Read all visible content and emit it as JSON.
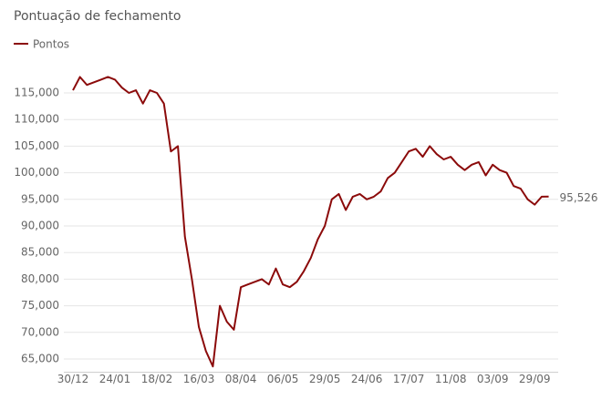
{
  "chart_data": {
    "type": "line",
    "title": "Pontuação de fechamento",
    "categories": [
      "30/12",
      null,
      null,
      null,
      null,
      null,
      "24/01",
      null,
      null,
      null,
      null,
      null,
      "18/02",
      null,
      null,
      null,
      null,
      null,
      "16/03",
      null,
      null,
      null,
      null,
      null,
      "08/04",
      null,
      null,
      null,
      null,
      null,
      "06/05",
      null,
      null,
      null,
      null,
      null,
      "29/05",
      null,
      null,
      null,
      null,
      null,
      "24/06",
      null,
      null,
      null,
      null,
      null,
      "17/07",
      null,
      null,
      null,
      null,
      null,
      "11/08",
      null,
      null,
      null,
      null,
      null,
      "03/09",
      null,
      null,
      null,
      null,
      null,
      "29/09",
      null,
      null
    ],
    "series": [
      {
        "name": "Pontos",
        "color": "#8b0a0a",
        "values": [
          115500,
          118000,
          116500,
          117000,
          117500,
          118000,
          117500,
          116000,
          115000,
          115500,
          113000,
          115500,
          115000,
          113000,
          104000,
          105000,
          88000,
          80000,
          71000,
          66500,
          63600,
          75000,
          72000,
          70500,
          78500,
          79000,
          79500,
          80000,
          79000,
          82000,
          79000,
          78500,
          79500,
          81500,
          84000,
          87500,
          90000,
          95000,
          96000,
          93000,
          95500,
          96000,
          95000,
          95500,
          96500,
          99000,
          100000,
          102000,
          104000,
          104500,
          103000,
          105000,
          103500,
          102500,
          103000,
          101500,
          100500,
          101500,
          102000,
          99500,
          101500,
          100500,
          100000,
          97500,
          97000,
          95000,
          94000,
          95500,
          95526
        ],
        "value_labels": [
          null,
          null,
          null,
          null,
          null,
          null,
          null,
          null,
          null,
          null,
          null,
          null,
          null,
          null,
          null,
          null,
          null,
          null,
          null,
          null,
          null,
          null,
          null,
          null,
          null,
          null,
          null,
          null,
          null,
          null,
          null,
          null,
          null,
          null,
          null,
          null,
          null,
          null,
          null,
          null,
          null,
          null,
          null,
          null,
          null,
          null,
          null,
          null,
          null,
          null,
          null,
          null,
          null,
          null,
          null,
          null,
          null,
          null,
          null,
          null,
          null,
          null,
          null,
          null,
          null,
          null,
          null,
          null,
          "95,526"
        ]
      }
    ],
    "ylim": [
      62500,
      120000
    ],
    "yticks": [
      {
        "value": 65000,
        "label": "65,000"
      },
      {
        "value": 70000,
        "label": "70,000"
      },
      {
        "value": 75000,
        "label": "75,000"
      },
      {
        "value": 80000,
        "label": "80,000"
      },
      {
        "value": 85000,
        "label": "85,000"
      },
      {
        "value": 90000,
        "label": "90,000"
      },
      {
        "value": 95000,
        "label": "95,000"
      },
      {
        "value": 100000,
        "label": "100,000"
      },
      {
        "value": 105000,
        "label": "105,000"
      },
      {
        "value": 110000,
        "label": "110,000"
      },
      {
        "value": 115000,
        "label": "115,000"
      }
    ],
    "grid": true,
    "legend": "top-left"
  }
}
